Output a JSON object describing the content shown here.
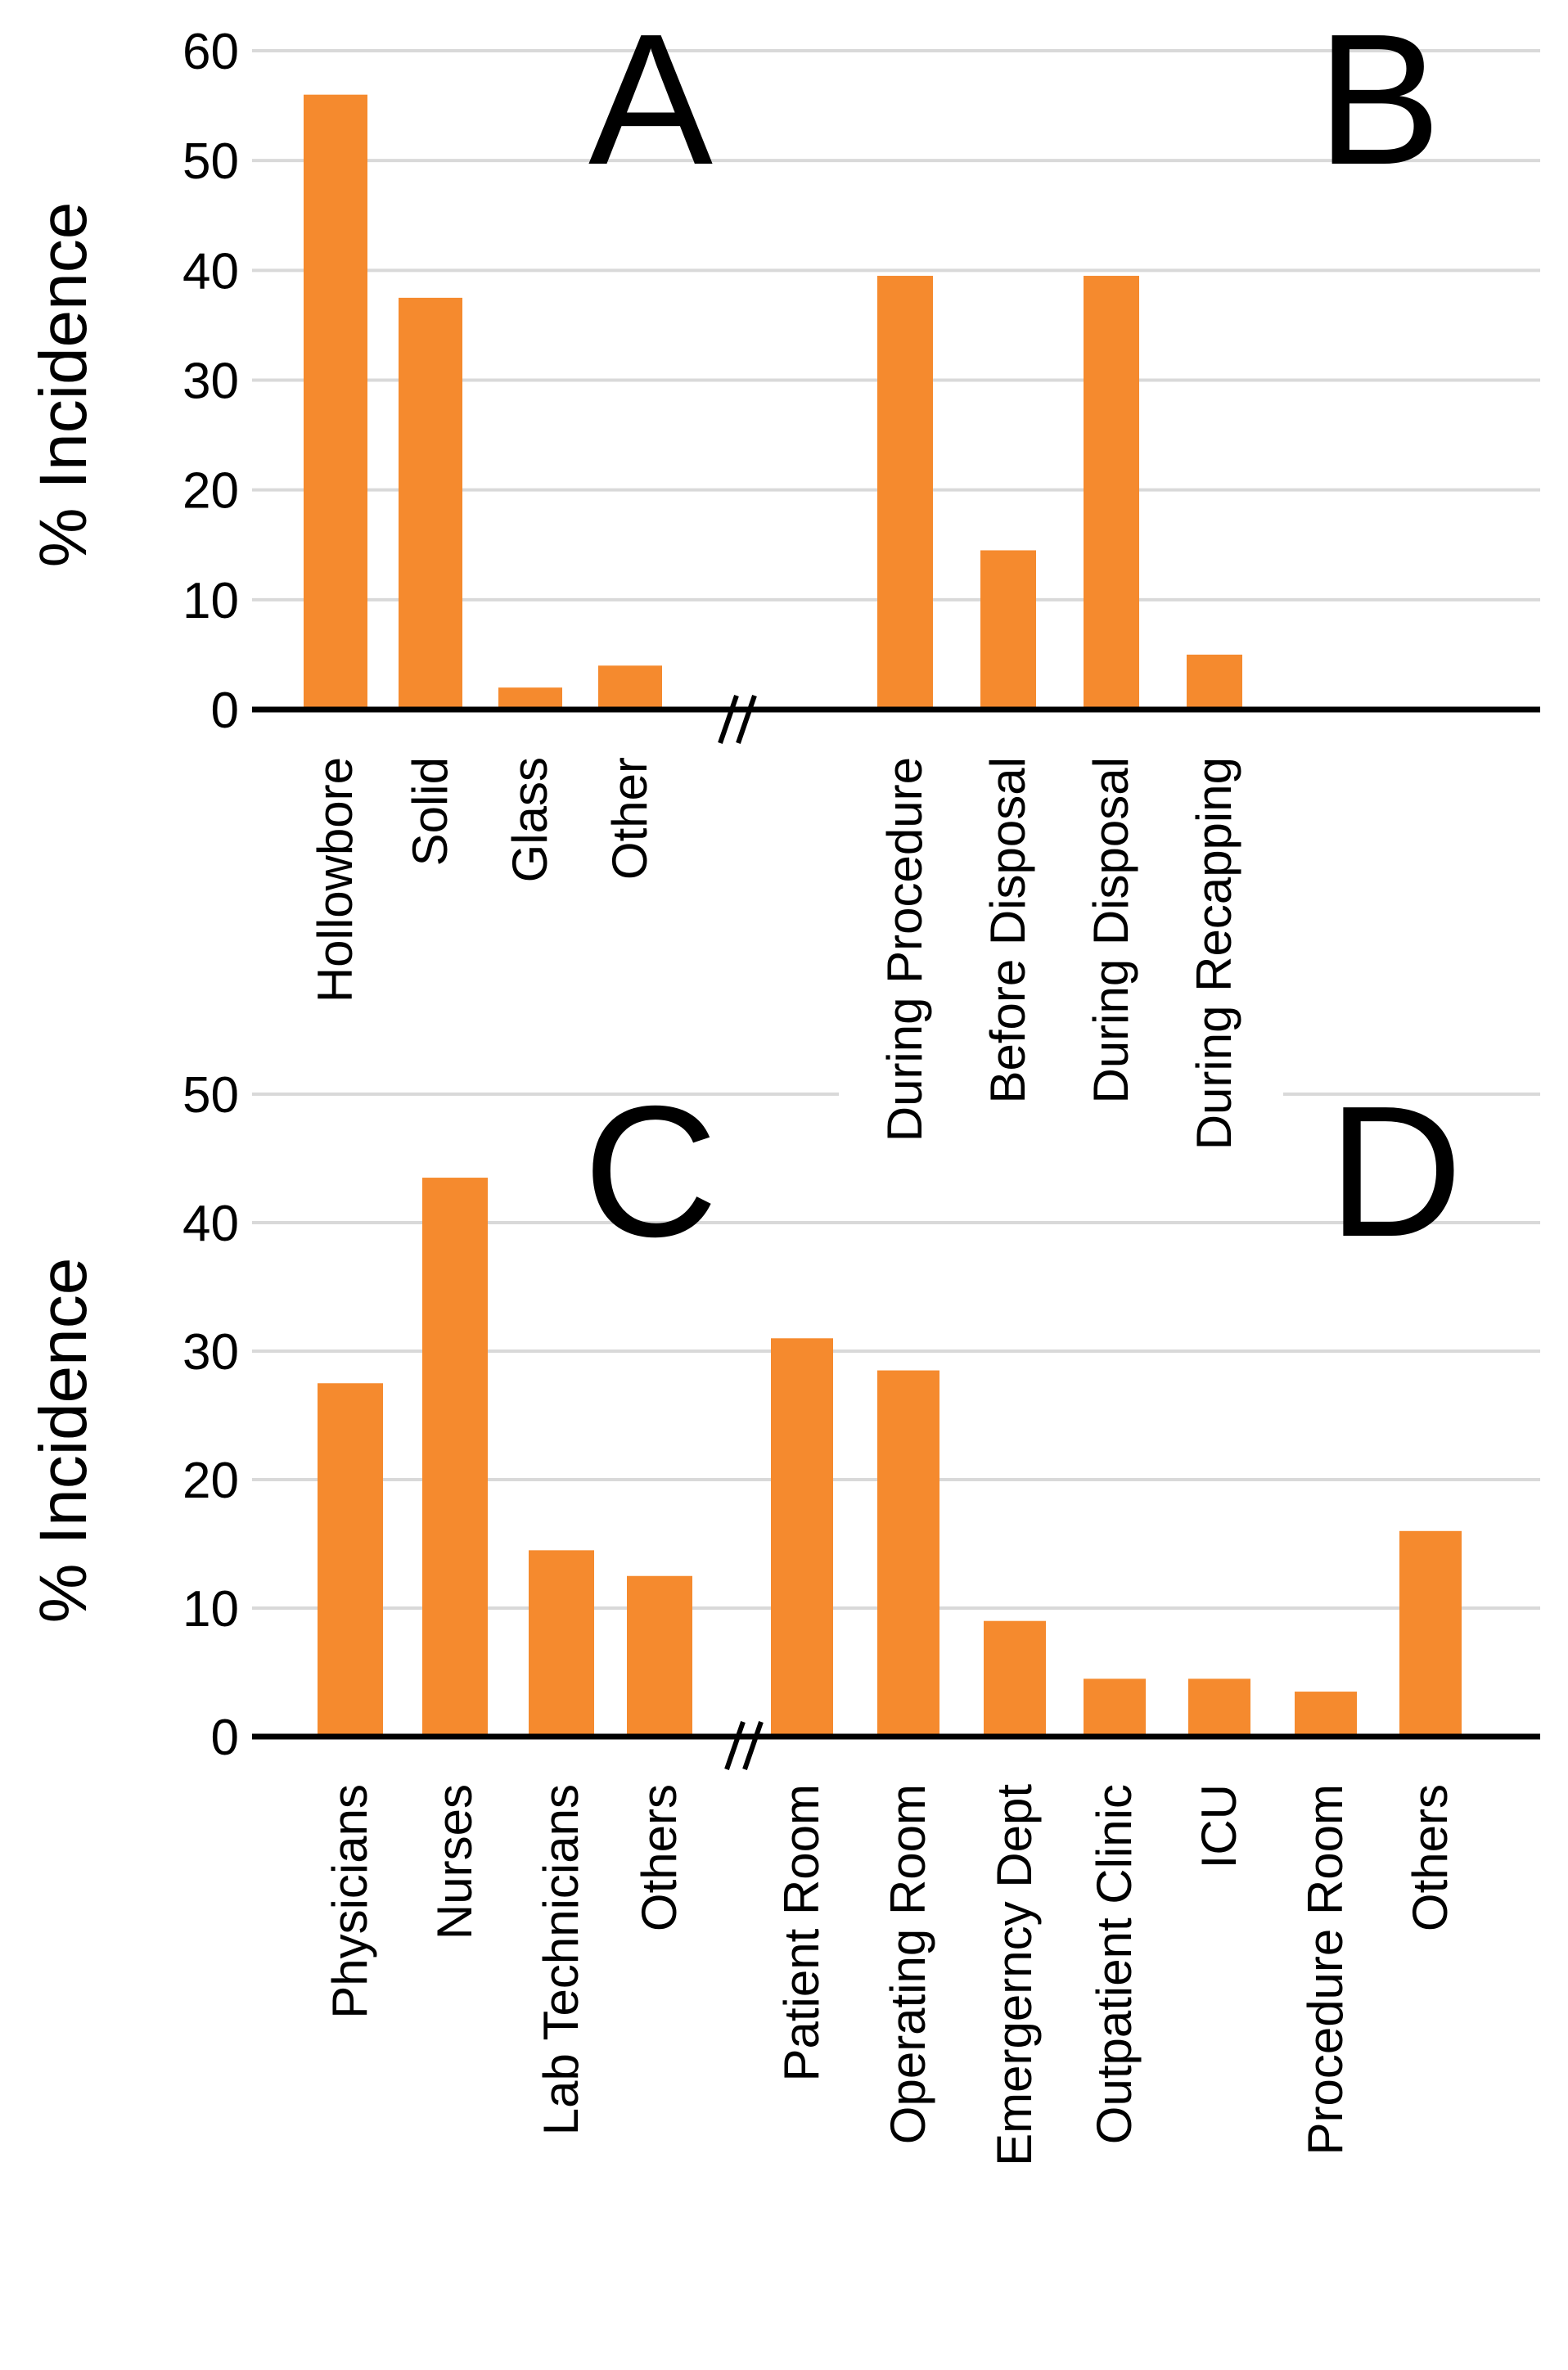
{
  "chart_data": [
    {
      "type": "bar",
      "ylabel": "% Incidence",
      "ylim": [
        0,
        60
      ],
      "yticks": [
        0,
        10,
        20,
        30,
        40,
        50,
        60
      ],
      "grid": true,
      "axis_break": "between A and B",
      "panels": [
        {
          "label": "A",
          "categories": [
            "Hollowbore",
            "Solid",
            "Glass",
            "Other"
          ],
          "values": [
            56,
            37.5,
            2,
            4
          ],
          "color": "#f58a2e"
        },
        {
          "label": "B",
          "categories": [
            "During Procedure",
            "Before Disposal",
            "During Disposal",
            "During Recapping"
          ],
          "values": [
            39.5,
            14.5,
            39.5,
            5
          ],
          "color": "#f58a2e"
        }
      ]
    },
    {
      "type": "bar",
      "ylabel": "% Incidence",
      "ylim": [
        0,
        50
      ],
      "yticks": [
        0,
        10,
        20,
        30,
        40,
        50
      ],
      "grid": true,
      "axis_break": "between C and D",
      "panels": [
        {
          "label": "C",
          "categories": [
            "Physicians",
            "Nurses",
            "Lab Technicians",
            "Others"
          ],
          "values": [
            27.5,
            43.5,
            14.5,
            12.5
          ],
          "color": "#f58a2e"
        },
        {
          "label": "D",
          "categories": [
            "Patient Room",
            "Operating Room",
            "Emergerncy Dept",
            "Outpatient Clinic",
            "ICU",
            "Procedure Room",
            "Others"
          ],
          "values": [
            31,
            28.5,
            9,
            4.5,
            4.5,
            3.5,
            16
          ],
          "color": "#f58a2e"
        }
      ]
    }
  ]
}
